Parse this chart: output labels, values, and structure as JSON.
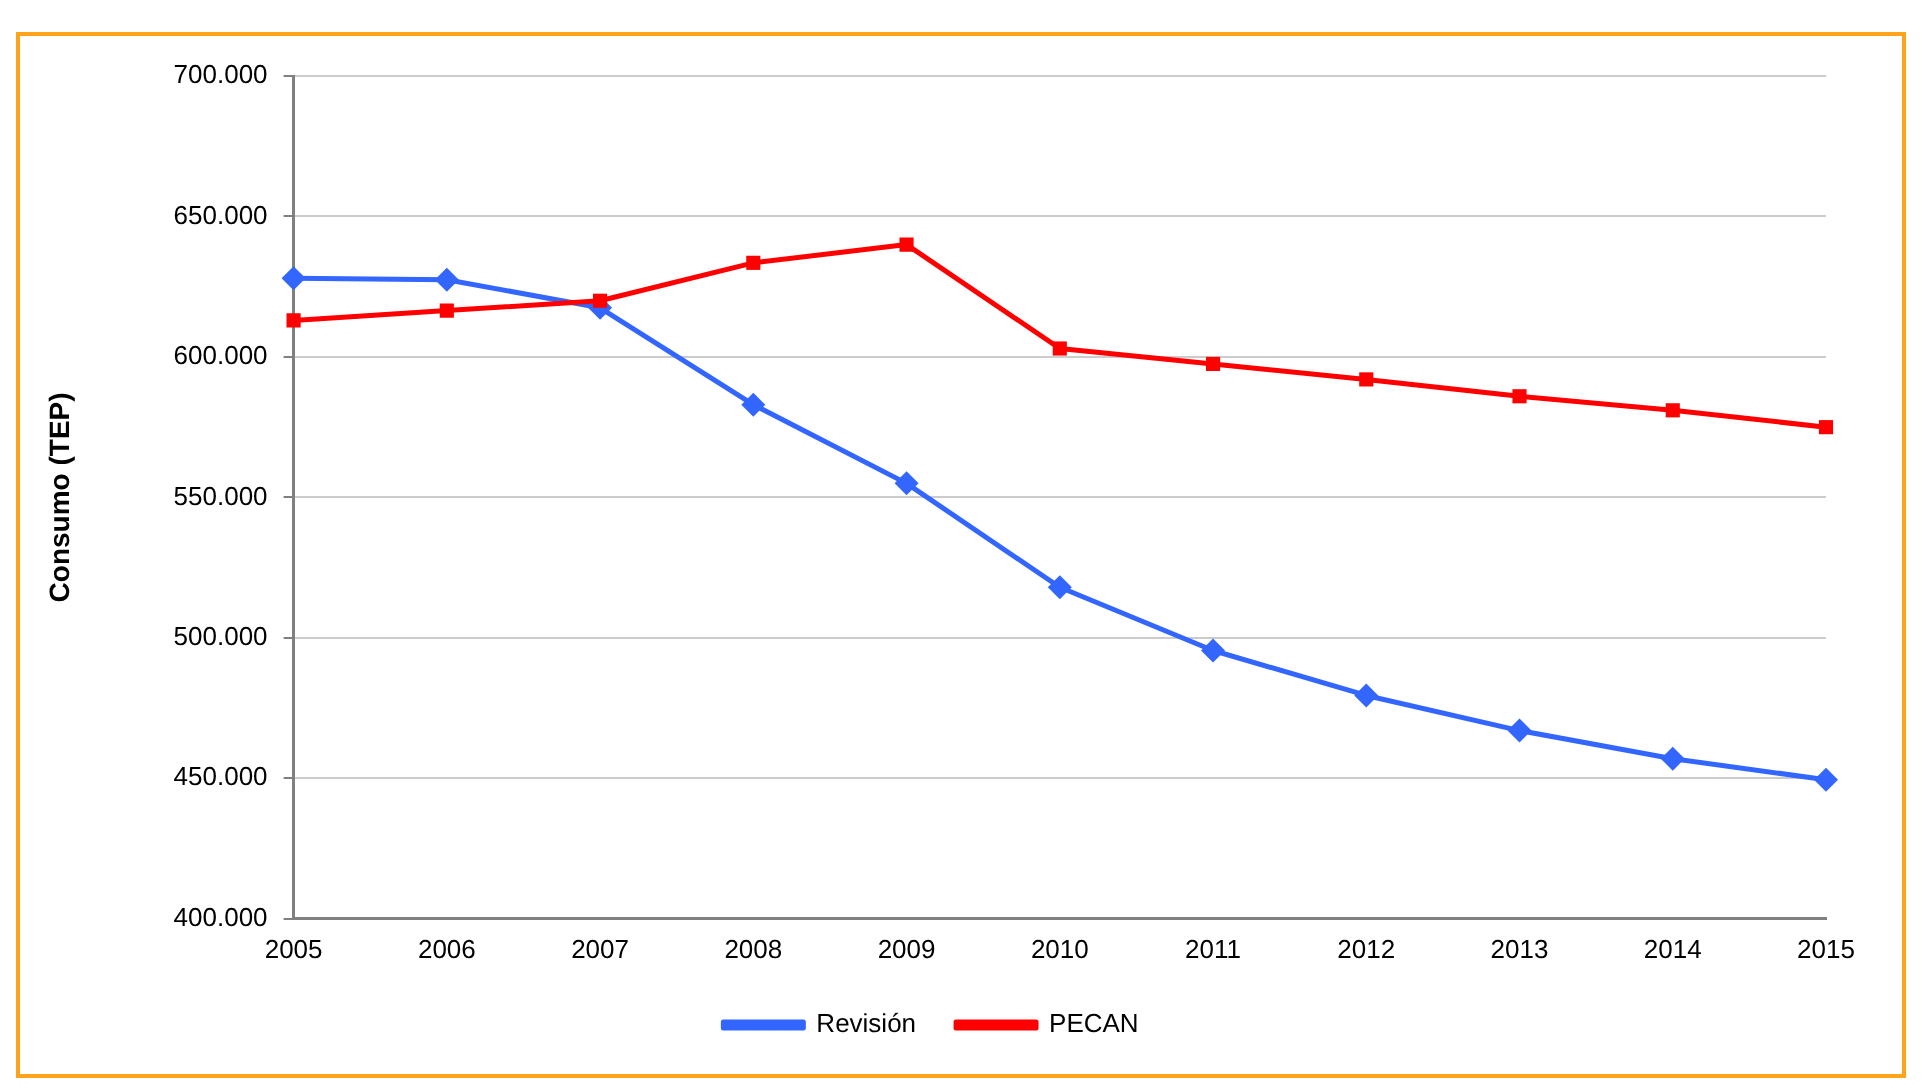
{
  "chart_data": {
    "type": "line",
    "ylabel": "Consumo (TEP)",
    "categories": [
      "2005",
      "2006",
      "2007",
      "2008",
      "2009",
      "2010",
      "2011",
      "2012",
      "2013",
      "2014",
      "2015"
    ],
    "series": [
      {
        "name": "Revisión",
        "color": "#3366ff",
        "marker": "diamond",
        "values": [
          628000,
          627500,
          617500,
          583000,
          555000,
          518000,
          495500,
          479500,
          467000,
          457000,
          449500
        ]
      },
      {
        "name": "PECAN",
        "color": "#ff0000",
        "marker": "square",
        "values": [
          613000,
          616500,
          620000,
          633500,
          640000,
          603000,
          597500,
          592000,
          586000,
          581000,
          575000
        ]
      }
    ],
    "ylim": [
      400000,
      700000
    ],
    "yticks": [
      {
        "value": 400000,
        "label": "400.000"
      },
      {
        "value": 450000,
        "label": "450.000"
      },
      {
        "value": 500000,
        "label": "500.000"
      },
      {
        "value": 550000,
        "label": "550.000"
      },
      {
        "value": 600000,
        "label": "600.000"
      },
      {
        "value": 650000,
        "label": "650.000"
      },
      {
        "value": 700000,
        "label": "700.000"
      }
    ],
    "grid": "y",
    "legend": "bottom",
    "line_style": "solid"
  }
}
